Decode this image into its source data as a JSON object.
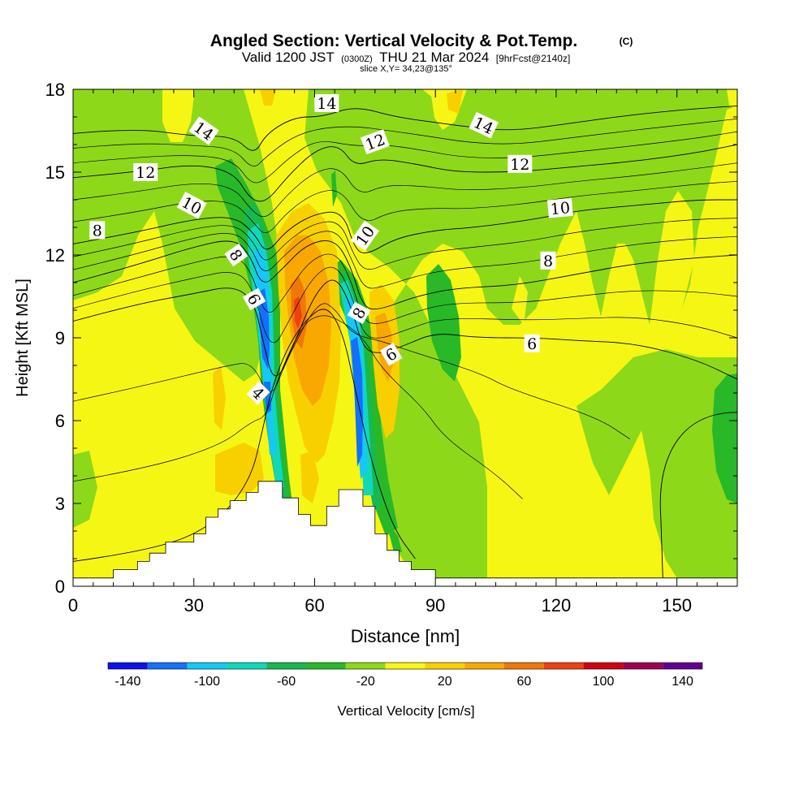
{
  "header": {
    "title": "Angled Section: Vertical Velocity & Pot.Temp.",
    "copyright": "(C)",
    "valid_main": "Valid 1200 JST",
    "valid_z": "(0300Z)",
    "valid_date": "THU 21 Mar 2024",
    "valid_fcst": "[9hrFcst@2140z]",
    "slice": "slice X,Y= 34,23@135°"
  },
  "chart_data": {
    "type": "heatmap",
    "xlabel": "Distance [nm]",
    "ylabel": "Height [Kft MSL]",
    "xlim": [
      0,
      165
    ],
    "ylim": [
      0,
      18
    ],
    "x_ticks": [
      0,
      30,
      60,
      90,
      120,
      150
    ],
    "y_ticks": [
      0,
      3,
      6,
      9,
      12,
      15,
      18
    ],
    "colorbar": {
      "label": "Vertical Velocity [cm/s]",
      "range": [
        -150,
        150
      ],
      "tick_labels": [
        -140,
        -100,
        -60,
        -20,
        20,
        60,
        100,
        140
      ],
      "colors": [
        "#1010f0",
        "#1470f8",
        "#14c8f8",
        "#10d8b8",
        "#18b850",
        "#28b828",
        "#8ed81a",
        "#f6f614",
        "#f8d000",
        "#f8a800",
        "#f07808",
        "#f04010",
        "#d00010",
        "#a00050",
        "#640090"
      ]
    },
    "terrain_profile": [
      [
        0,
        0.3
      ],
      [
        10,
        0.3
      ],
      [
        10,
        0.6
      ],
      [
        16,
        0.6
      ],
      [
        16,
        0.9
      ],
      [
        19,
        0.9
      ],
      [
        19,
        1.2
      ],
      [
        23,
        1.2
      ],
      [
        23,
        1.6
      ],
      [
        30,
        1.6
      ],
      [
        30,
        1.9
      ],
      [
        33,
        1.9
      ],
      [
        33,
        2.5
      ],
      [
        36,
        2.5
      ],
      [
        36,
        2.8
      ],
      [
        39,
        2.8
      ],
      [
        39,
        3.1
      ],
      [
        43,
        3.1
      ],
      [
        43,
        3.4
      ],
      [
        46,
        3.4
      ],
      [
        46,
        3.8
      ],
      [
        52,
        3.8
      ],
      [
        52,
        3.2
      ],
      [
        56,
        3.2
      ],
      [
        56,
        2.6
      ],
      [
        59,
        2.6
      ],
      [
        59,
        2.2
      ],
      [
        63,
        2.2
      ],
      [
        63,
        2.9
      ],
      [
        66,
        2.9
      ],
      [
        66,
        3.5
      ],
      [
        72,
        3.5
      ],
      [
        72,
        2.9
      ],
      [
        75,
        2.9
      ],
      [
        75,
        1.9
      ],
      [
        78,
        1.9
      ],
      [
        78,
        1.3
      ],
      [
        81,
        1.3
      ],
      [
        81,
        0.9
      ],
      [
        84,
        0.9
      ],
      [
        84,
        0.6
      ],
      [
        90,
        0.6
      ],
      [
        90,
        0.3
      ],
      [
        165,
        0.3
      ]
    ],
    "theta_contours": [
      {
        "label": "4",
        "points": [
          [
            0,
            0.9
          ],
          [
            20,
            1.3
          ],
          [
            35,
            2.2
          ],
          [
            44,
            3.8
          ],
          [
            47,
            5.6
          ],
          [
            49,
            7.0
          ],
          [
            53,
            8.6
          ],
          [
            58,
            9.7
          ],
          [
            63,
            10.2
          ],
          [
            67,
            9.2
          ],
          [
            70,
            7.2
          ],
          [
            73,
            5.2
          ],
          [
            76,
            3.6
          ],
          [
            80,
            2.0
          ],
          [
            85,
            1.0
          ]
        ]
      },
      {
        "label": "6",
        "points": [
          [
            0,
            9.6
          ],
          [
            15,
            10.2
          ],
          [
            30,
            10.6
          ],
          [
            40,
            10.9
          ],
          [
            45,
            10.3
          ],
          [
            47,
            9.0
          ],
          [
            50,
            7.2
          ],
          [
            55,
            8.8
          ],
          [
            60,
            10.6
          ],
          [
            65,
            11.3
          ],
          [
            69,
            10.2
          ],
          [
            72,
            8.6
          ],
          [
            76,
            8.4
          ],
          [
            82,
            8.7
          ],
          [
            90,
            9.2
          ],
          [
            100,
            9.0
          ],
          [
            115,
            9.0
          ],
          [
            125,
            8.9
          ],
          [
            140,
            8.8
          ],
          [
            155,
            8.2
          ],
          [
            165,
            7.5
          ]
        ]
      },
      {
        "label": "8",
        "points": [
          [
            0,
            11.0
          ],
          [
            15,
            11.6
          ],
          [
            30,
            12.3
          ],
          [
            40,
            12.6
          ],
          [
            44,
            12.0
          ],
          [
            47,
            10.8
          ],
          [
            52,
            11.5
          ],
          [
            58,
            12.4
          ],
          [
            65,
            12.6
          ],
          [
            69,
            11.6
          ],
          [
            72,
            10.1
          ],
          [
            76,
            10.0
          ],
          [
            85,
            10.5
          ],
          [
            95,
            10.8
          ],
          [
            110,
            10.9
          ],
          [
            125,
            11.3
          ],
          [
            140,
            11.7
          ],
          [
            155,
            11.9
          ],
          [
            165,
            12.0
          ]
        ]
      },
      {
        "label": "10",
        "points": [
          [
            0,
            12.4
          ],
          [
            15,
            12.8
          ],
          [
            30,
            13.3
          ],
          [
            40,
            13.4
          ],
          [
            45,
            12.8
          ],
          [
            48,
            12.0
          ],
          [
            53,
            12.9
          ],
          [
            60,
            13.5
          ],
          [
            67,
            13.6
          ],
          [
            70,
            12.2
          ],
          [
            73,
            12.0
          ],
          [
            80,
            12.6
          ],
          [
            90,
            12.9
          ],
          [
            100,
            13.0
          ],
          [
            115,
            13.3
          ],
          [
            125,
            13.6
          ],
          [
            140,
            13.8
          ],
          [
            155,
            14.0
          ],
          [
            165,
            14.0
          ]
        ]
      },
      {
        "label": "12",
        "points": [
          [
            0,
            14.8
          ],
          [
            15,
            15.0
          ],
          [
            30,
            15.3
          ],
          [
            40,
            15.0
          ],
          [
            44,
            14.0
          ],
          [
            48,
            13.9
          ],
          [
            53,
            14.8
          ],
          [
            60,
            15.8
          ],
          [
            66,
            16.0
          ],
          [
            70,
            15.2
          ],
          [
            76,
            15.5
          ],
          [
            85,
            15.3
          ],
          [
            95,
            15.0
          ],
          [
            110,
            15.0
          ],
          [
            125,
            15.2
          ],
          [
            140,
            15.4
          ],
          [
            155,
            15.7
          ],
          [
            165,
            16.0
          ]
        ]
      },
      {
        "label": "14",
        "points": [
          [
            0,
            16.4
          ],
          [
            15,
            16.6
          ],
          [
            30,
            16.3
          ],
          [
            40,
            16.3
          ],
          [
            45,
            15.6
          ],
          [
            48,
            16.4
          ],
          [
            55,
            17.0
          ],
          [
            62,
            17.0
          ],
          [
            70,
            17.4
          ],
          [
            80,
            17.0
          ],
          [
            90,
            16.8
          ],
          [
            100,
            16.6
          ],
          [
            110,
            16.5
          ],
          [
            125,
            16.8
          ],
          [
            140,
            17.1
          ],
          [
            155,
            17.3
          ],
          [
            165,
            17.4
          ]
        ]
      }
    ],
    "theta_labels": [
      {
        "text": "14",
        "x": 32.5,
        "y": 16.5,
        "rot": 35
      },
      {
        "text": "12",
        "x": 18,
        "y": 15.0,
        "rot": 0
      },
      {
        "text": "10",
        "x": 29.5,
        "y": 13.8,
        "rot": 28
      },
      {
        "text": "8",
        "x": 6,
        "y": 12.9,
        "rot": 0
      },
      {
        "text": "8",
        "x": 40.5,
        "y": 12.0,
        "rot": 55
      },
      {
        "text": "6",
        "x": 45,
        "y": 10.4,
        "rot": 60
      },
      {
        "text": "4",
        "x": 46,
        "y": 7.0,
        "rot": 45
      },
      {
        "text": "14",
        "x": 63,
        "y": 17.5,
        "rot": 0
      },
      {
        "text": "12",
        "x": 75,
        "y": 16.1,
        "rot": -20
      },
      {
        "text": "10",
        "x": 72.5,
        "y": 12.7,
        "rot": -55
      },
      {
        "text": "8",
        "x": 71,
        "y": 9.9,
        "rot": -60
      },
      {
        "text": "6",
        "x": 79,
        "y": 8.4,
        "rot": -30
      },
      {
        "text": "14",
        "x": 102,
        "y": 16.7,
        "rot": 25
      },
      {
        "text": "12",
        "x": 111,
        "y": 15.3,
        "rot": 0
      },
      {
        "text": "10",
        "x": 121,
        "y": 13.7,
        "rot": -5
      },
      {
        "text": "8",
        "x": 118,
        "y": 11.8,
        "rot": 0
      },
      {
        "text": "6",
        "x": 114,
        "y": 8.8,
        "rot": 0
      }
    ]
  }
}
